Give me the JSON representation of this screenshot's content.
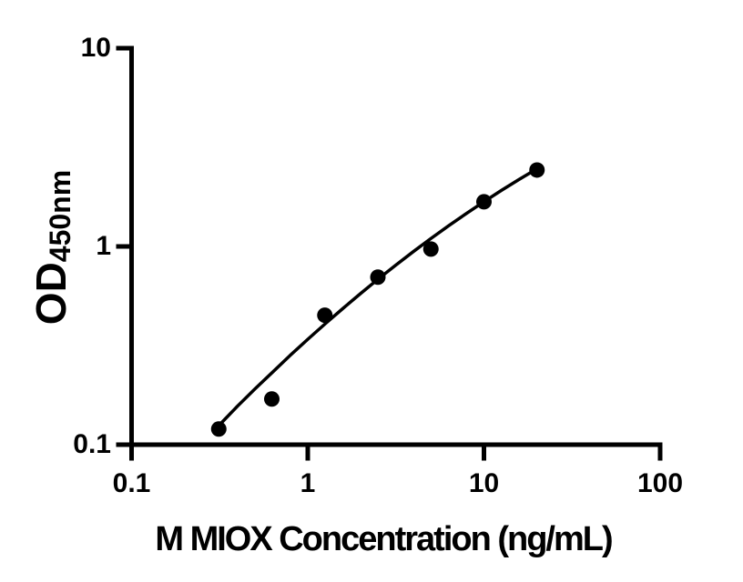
{
  "figure": {
    "background": "#ffffff",
    "ink_color": "#000000"
  },
  "chart_data": {
    "type": "scatter",
    "title": "",
    "xlabel": "M MIOX Concentration (ng/mL)",
    "ylabel": {
      "main": "OD",
      "subscript": "450nm",
      "text": "OD450nm"
    },
    "x_scale": "log",
    "y_scale": "log",
    "xlim": [
      0.1,
      100
    ],
    "ylim": [
      0.1,
      10
    ],
    "x_ticks": [
      0.1,
      1,
      10,
      100
    ],
    "x_tick_labels": [
      "0.1",
      "1",
      "10",
      "100"
    ],
    "y_ticks": [
      0.1,
      1,
      10
    ],
    "y_tick_labels": [
      "0.1",
      "1",
      "10"
    ],
    "grid": false,
    "legend": null,
    "series": [
      {
        "name": "standard-points",
        "style": "markers",
        "marker": "filled-circle",
        "color": "#000000",
        "points": [
          [
            0.3125,
            0.12
          ],
          [
            0.625,
            0.17
          ],
          [
            1.25,
            0.45
          ],
          [
            2.5,
            0.7
          ],
          [
            5,
            0.97
          ],
          [
            10,
            1.68
          ],
          [
            20,
            2.43
          ]
        ]
      },
      {
        "name": "fit-curve",
        "style": "line",
        "color": "#000000",
        "points": [
          [
            0.313,
            0.125
          ],
          [
            0.398,
            0.156
          ],
          [
            0.501,
            0.191
          ],
          [
            0.631,
            0.232
          ],
          [
            0.794,
            0.282
          ],
          [
            1.0,
            0.34
          ],
          [
            1.259,
            0.408
          ],
          [
            1.585,
            0.487
          ],
          [
            1.995,
            0.579
          ],
          [
            2.512,
            0.685
          ],
          [
            3.162,
            0.805
          ],
          [
            3.981,
            0.943
          ],
          [
            5.012,
            1.098
          ],
          [
            6.31,
            1.272
          ],
          [
            7.943,
            1.466
          ],
          [
            10.0,
            1.682
          ],
          [
            12.59,
            1.92
          ],
          [
            15.85,
            2.18
          ],
          [
            20.0,
            2.465
          ]
        ]
      }
    ]
  }
}
